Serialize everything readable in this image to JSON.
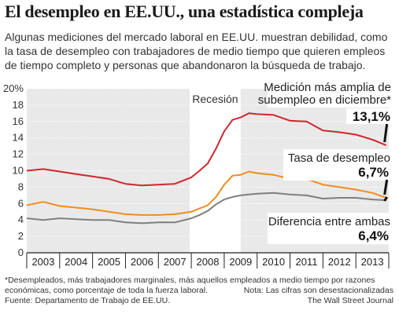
{
  "header": {
    "title": "El desempleo en EE.UU., una estadística compleja",
    "subtitle": "Algunas mediciones del mercado laboral en EE.UU. muestran debilidad, como la tasa de desempleo con trabajadores de medio tiempo que quieren empleos de tiempo completo y personas que abandonaron la búsqueda de trabajo."
  },
  "footer": {
    "note_line1": "*Desempleados, más trabajadores marginales, más aquellos empleados a medio tiempo por razones",
    "note_line2_left": "económicas, como porcentaje de toda la fuerza laboral.",
    "note_line2_right": "Nota: Las cifras son desestacionalizadas",
    "source": "Fuente: Departamento de Trabajo de EE.UU.",
    "credit": "The Wall Street Journal"
  },
  "chart_data": {
    "type": "line",
    "x_unit": "year",
    "xlim": [
      2003,
      2014
    ],
    "ylim": [
      0,
      20
    ],
    "yticks": [
      "20%",
      "18",
      "16",
      "14",
      "12",
      "10",
      "8",
      "6",
      "4",
      "2",
      "0"
    ],
    "ytick_values": [
      20,
      18,
      16,
      14,
      12,
      10,
      8,
      6,
      4,
      2,
      0
    ],
    "xtick_labels": [
      "2003",
      "2004",
      "2005",
      "2006",
      "2007",
      "2008",
      "2009",
      "2010",
      "2011",
      "2012",
      "2013"
    ],
    "recession": {
      "label": "Recesión",
      "start": 2007.95,
      "end": 2009.5,
      "color": "#ffffff"
    },
    "background": "#e9e9e9",
    "series": [
      {
        "name": "Medición más amplia de subempleo en diciembre*",
        "label_line1": "Medición más amplia de",
        "label_line2": "subempleo en diciembre*",
        "value_label": "13,1%",
        "color": "#d0262f",
        "x": [
          2003.0,
          2003.5,
          2004.0,
          2004.5,
          2005.0,
          2005.5,
          2006.0,
          2006.5,
          2007.0,
          2007.5,
          2008.0,
          2008.25,
          2008.5,
          2008.75,
          2009.0,
          2009.25,
          2009.5,
          2009.75,
          2010.0,
          2010.5,
          2011.0,
          2011.5,
          2012.0,
          2012.5,
          2013.0,
          2013.5,
          2013.92
        ],
        "y": [
          10.0,
          10.2,
          9.9,
          9.6,
          9.3,
          9.0,
          8.4,
          8.2,
          8.3,
          8.4,
          9.2,
          10.0,
          10.9,
          12.7,
          14.8,
          16.2,
          16.5,
          17.0,
          16.9,
          16.8,
          16.1,
          16.0,
          14.9,
          14.7,
          14.4,
          13.8,
          13.1
        ]
      },
      {
        "name": "Tasa de desempleo",
        "label_line1": "Tasa de desempleo",
        "value_label": "6,7%",
        "color": "#f08c1e",
        "x": [
          2003.0,
          2003.5,
          2004.0,
          2004.5,
          2005.0,
          2005.5,
          2006.0,
          2006.5,
          2007.0,
          2007.5,
          2008.0,
          2008.25,
          2008.5,
          2008.75,
          2009.0,
          2009.25,
          2009.5,
          2009.75,
          2010.0,
          2010.5,
          2011.0,
          2011.5,
          2012.0,
          2012.5,
          2013.0,
          2013.5,
          2013.92
        ],
        "y": [
          5.8,
          6.2,
          5.7,
          5.5,
          5.3,
          5.0,
          4.7,
          4.6,
          4.6,
          4.7,
          5.0,
          5.4,
          5.8,
          6.8,
          8.3,
          9.4,
          9.5,
          9.9,
          9.7,
          9.5,
          9.0,
          9.0,
          8.3,
          8.0,
          7.7,
          7.3,
          6.7
        ]
      },
      {
        "name": "Diferencia entre ambas",
        "label_line1": "Diferencia entre ambas",
        "value_label": "6,4%",
        "color": "#7f7f7f",
        "x": [
          2003.0,
          2003.5,
          2004.0,
          2004.5,
          2005.0,
          2005.5,
          2006.0,
          2006.5,
          2007.0,
          2007.5,
          2008.0,
          2008.25,
          2008.5,
          2008.75,
          2009.0,
          2009.25,
          2009.5,
          2009.75,
          2010.0,
          2010.5,
          2011.0,
          2011.5,
          2012.0,
          2012.5,
          2013.0,
          2013.5,
          2013.92
        ],
        "y": [
          4.2,
          4.0,
          4.2,
          4.1,
          4.0,
          4.0,
          3.7,
          3.6,
          3.7,
          3.7,
          4.2,
          4.6,
          5.1,
          5.9,
          6.5,
          6.8,
          7.0,
          7.1,
          7.2,
          7.3,
          7.1,
          7.0,
          6.6,
          6.7,
          6.7,
          6.5,
          6.4
        ]
      }
    ],
    "grid": true
  }
}
